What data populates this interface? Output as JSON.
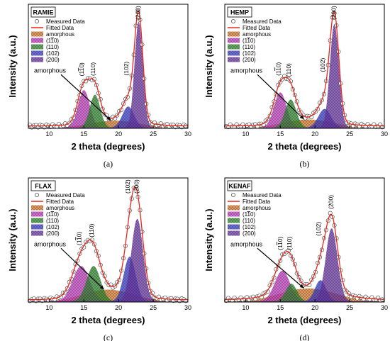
{
  "colors": {
    "fit": "#e8261c",
    "amorphous": "#d97a2b",
    "p1m10": "#c43cc2",
    "p110": "#2f8a2e",
    "p102": "#3b3ccf",
    "p200": "#6a35a8",
    "measured": "#555555"
  },
  "chart_data": [
    {
      "name": "RAMIE",
      "caption": "(a)",
      "type": "line",
      "xlabel": "2 theta (degrees)",
      "ylabel": "Intensity (a.u.)",
      "xlim": [
        7,
        30
      ],
      "ylim": [
        0,
        1
      ],
      "x_ticks": [
        "10",
        "15",
        "20",
        "25",
        "30"
      ],
      "legend": [
        "Measured Data",
        "Fitted Data",
        "amorphous",
        "(1-10)",
        "(110)",
        "(102)",
        "(200)"
      ],
      "peak_labels": [
        "(1-10)",
        "(110)",
        "(102)",
        "(200)"
      ],
      "amorphous_label": "amorphous",
      "peaks": [
        {
          "label": "amorphous",
          "center": 19.5,
          "height": 0.06,
          "width": 3.5
        },
        {
          "label": "(1-10)",
          "center": 15.0,
          "height": 0.32,
          "width": 0.85
        },
        {
          "label": "(110)",
          "center": 16.6,
          "height": 0.28,
          "width": 0.75
        },
        {
          "label": "(102)",
          "center": 21.4,
          "height": 0.18,
          "width": 0.85
        },
        {
          "label": "(200)",
          "center": 22.9,
          "height": 0.9,
          "width": 0.6
        }
      ]
    },
    {
      "name": "HEMP",
      "caption": "(b)",
      "type": "line",
      "xlabel": "2 theta (degrees)",
      "ylabel": "Intensity (a.u.)",
      "xlim": [
        7,
        30
      ],
      "ylim": [
        0,
        1
      ],
      "x_ticks": [
        "10",
        "15",
        "20",
        "25",
        "30"
      ],
      "legend": [
        "Measured Data",
        "Fitted Data",
        "amorphous",
        "(1-10)",
        "(110)",
        "(102)",
        "(200)"
      ],
      "peak_labels": [
        "(1-10)",
        "(110)",
        "(102)",
        "(200)"
      ],
      "amorphous_label": "amorphous",
      "peaks": [
        {
          "label": "amorphous",
          "center": 19.0,
          "height": 0.07,
          "width": 3.5
        },
        {
          "label": "(1-10)",
          "center": 15.0,
          "height": 0.3,
          "width": 0.9
        },
        {
          "label": "(110)",
          "center": 16.5,
          "height": 0.24,
          "width": 0.8
        },
        {
          "label": "(102)",
          "center": 21.4,
          "height": 0.16,
          "width": 0.9
        },
        {
          "label": "(200)",
          "center": 22.8,
          "height": 0.88,
          "width": 0.65
        }
      ]
    },
    {
      "name": "FLAX",
      "caption": "(c)",
      "type": "line",
      "xlabel": "2 theta (degrees)",
      "ylabel": "Intensity (a.u.)",
      "xlim": [
        7,
        30
      ],
      "ylim": [
        0,
        1
      ],
      "x_ticks": [
        "10",
        "15",
        "20",
        "25",
        "30"
      ],
      "legend": [
        "Measured Data",
        "Fitted Data",
        "amorphous",
        "(1-10)",
        "(110)",
        "(102)",
        "(200)"
      ],
      "peak_labels": [
        "(1-10)",
        "(110)",
        "(102)",
        "(200)"
      ],
      "amorphous_label": "amorphous",
      "peaks": [
        {
          "label": "amorphous",
          "center": 18.5,
          "height": 0.1,
          "width": 3.5
        },
        {
          "label": "(1-10)",
          "center": 14.6,
          "height": 0.3,
          "width": 1.2
        },
        {
          "label": "(110)",
          "center": 16.4,
          "height": 0.3,
          "width": 1.0
        },
        {
          "label": "(102)",
          "center": 21.6,
          "height": 0.38,
          "width": 0.85
        },
        {
          "label": "(200)",
          "center": 22.7,
          "height": 0.7,
          "width": 0.85
        }
      ]
    },
    {
      "name": "KENAF",
      "caption": "(d)",
      "type": "line",
      "xlabel": "2 theta (degrees)",
      "ylabel": "Intensity (a.u.)",
      "xlim": [
        7,
        30
      ],
      "ylim": [
        0,
        1
      ],
      "x_ticks": [
        "10",
        "15",
        "20",
        "25",
        "30"
      ],
      "legend": [
        "Measured Data",
        "Fitted Data",
        "amorphous",
        "(1-10)",
        "(110)",
        "(102)",
        "(200)"
      ],
      "peak_labels": [
        "(1-10)",
        "(110)",
        "(102)",
        "(200)"
      ],
      "amorphous_label": "amorphous",
      "peaks": [
        {
          "label": "amorphous",
          "center": 19.0,
          "height": 0.11,
          "width": 4.0
        },
        {
          "label": "(1-10)",
          "center": 15.3,
          "height": 0.26,
          "width": 1.1
        },
        {
          "label": "(110)",
          "center": 16.6,
          "height": 0.15,
          "width": 0.8
        },
        {
          "label": "(102)",
          "center": 20.8,
          "height": 0.18,
          "width": 0.8
        },
        {
          "label": "(200)",
          "center": 22.4,
          "height": 0.62,
          "width": 0.85
        }
      ]
    }
  ]
}
